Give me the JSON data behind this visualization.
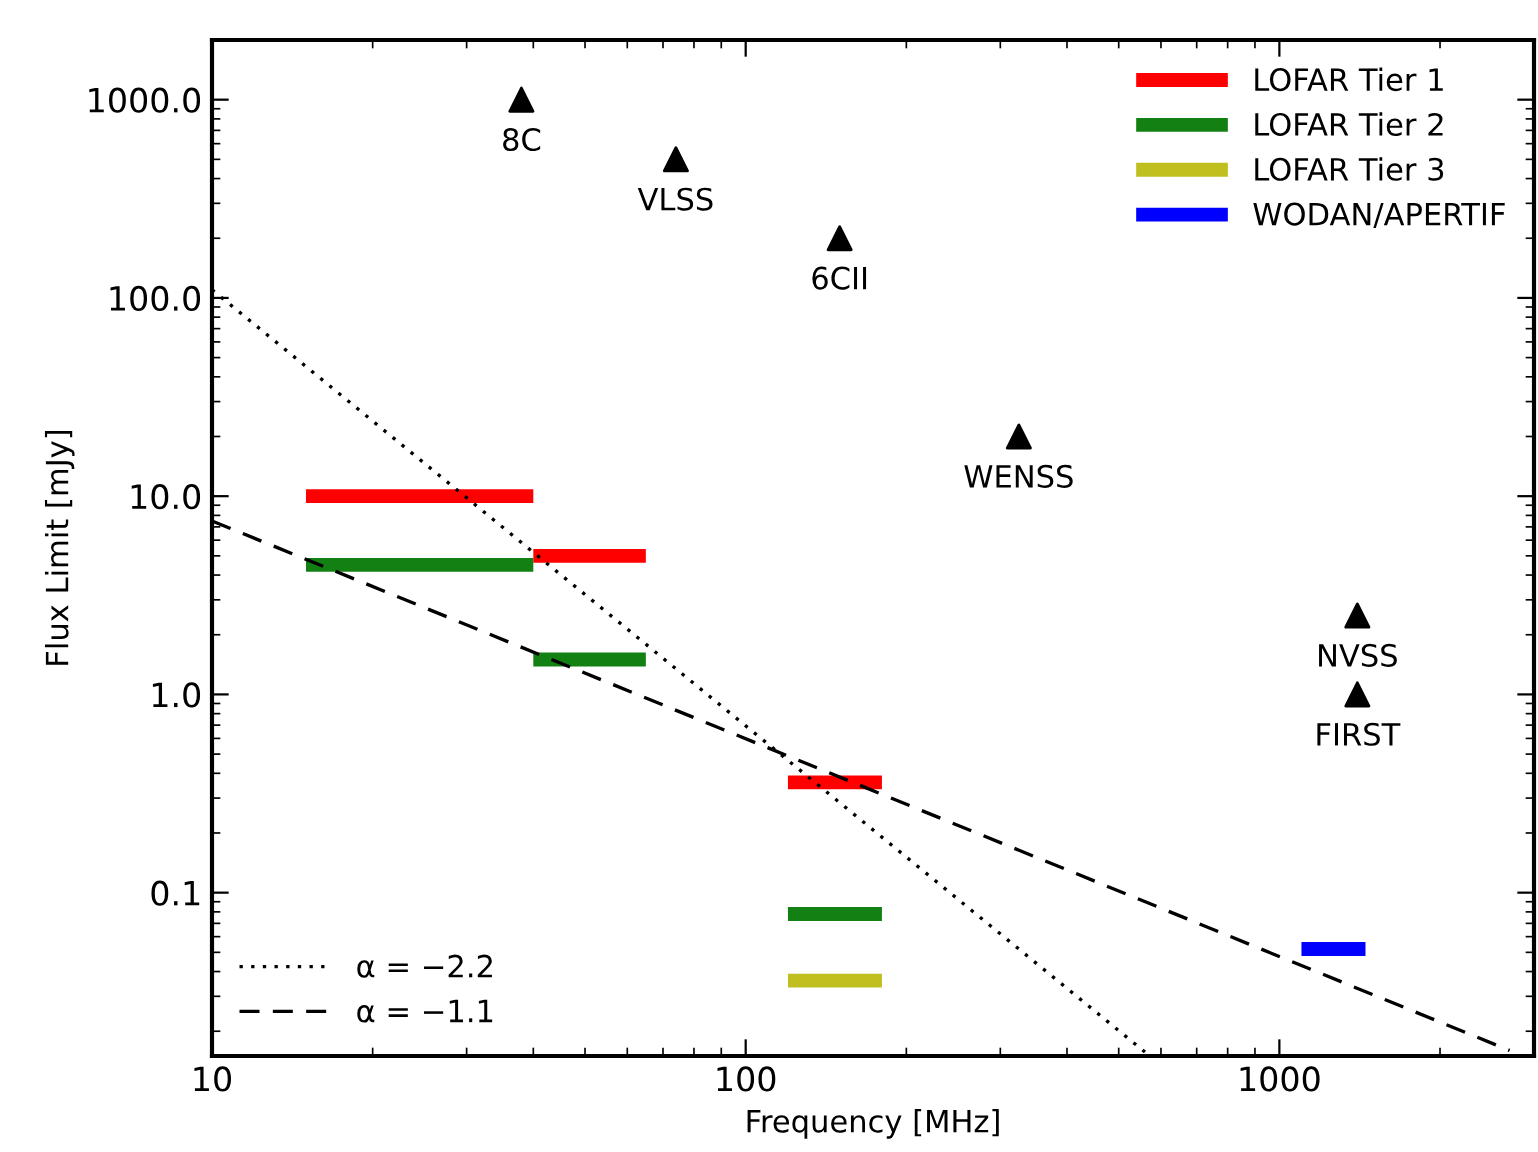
{
  "chart_data": {
    "type": "line",
    "xlabel": "Frequency [MHz]",
    "ylabel": "Flux Limit [mJy]",
    "log": "xy",
    "xlim": [
      10,
      3000
    ],
    "ylim": [
      0.015,
      2000
    ],
    "xticks": [
      10,
      100,
      1000
    ],
    "yticks": [
      {
        "value": 0.1,
        "label": "0.1"
      },
      {
        "value": 1,
        "label": "1.0"
      },
      {
        "value": 10,
        "label": "10.0"
      },
      {
        "value": 100,
        "label": "100.0"
      },
      {
        "value": 1000,
        "label": "1000.0"
      }
    ],
    "grid": false,
    "legend": [
      "top right",
      "lower left"
    ],
    "series": [
      {
        "name": "LOFAR Tier 1",
        "color": "#ff0000",
        "x": [
          15,
          40
        ],
        "values": [
          10,
          10
        ]
      },
      {
        "color": "#ff0000",
        "x": [
          40,
          65
        ],
        "values": [
          5,
          5
        ]
      },
      {
        "color": "#ff0000",
        "x": [
          120,
          180
        ],
        "values": [
          0.36,
          0.36
        ]
      },
      {
        "name": "LOFAR Tier 2",
        "color": "#138013",
        "x": [
          15,
          40
        ],
        "values": [
          4.5,
          4.5
        ]
      },
      {
        "color": "#138013",
        "x": [
          40,
          65
        ],
        "values": [
          1.5,
          1.5
        ]
      },
      {
        "color": "#138013",
        "x": [
          120,
          180
        ],
        "values": [
          0.078,
          0.078
        ]
      },
      {
        "name": "LOFAR Tier 3",
        "color": "#bfbf20",
        "x": [
          120,
          180
        ],
        "values": [
          0.036,
          0.036
        ]
      },
      {
        "name": "WODAN/APERTIF",
        "color": "#0000ff",
        "x": [
          1100,
          1450
        ],
        "values": [
          0.052,
          0.052
        ]
      },
      {
        "name": "α = −2.2",
        "color": "#000000",
        "line_style": "dotted",
        "x": [
          10,
          560
        ],
        "values": [
          110,
          0.0157
        ]
      },
      {
        "name": "α = −1.1",
        "color": "#000000",
        "line_style": "dashed",
        "x": [
          10,
          2700
        ],
        "values": [
          7.5,
          0.016
        ]
      },
      {
        "type": "scatter",
        "marker": "triangle",
        "color": "#000000",
        "x": [
          38,
          74,
          150,
          325,
          1400,
          1400
        ],
        "values": [
          1000,
          500,
          200,
          20,
          2.5,
          1.0
        ]
      }
    ],
    "annotations": [
      {
        "text": "8C",
        "x": 38,
        "y": 1000
      },
      {
        "text": "VLSS",
        "x": 74,
        "y": 500
      },
      {
        "text": "6CII",
        "x": 150,
        "y": 200
      },
      {
        "text": "WENSS",
        "x": 325,
        "y": 20
      },
      {
        "text": "NVSS",
        "x": 1400,
        "y": 2.5
      },
      {
        "text": "FIRST",
        "x": 1400,
        "y": 1.0
      }
    ]
  }
}
